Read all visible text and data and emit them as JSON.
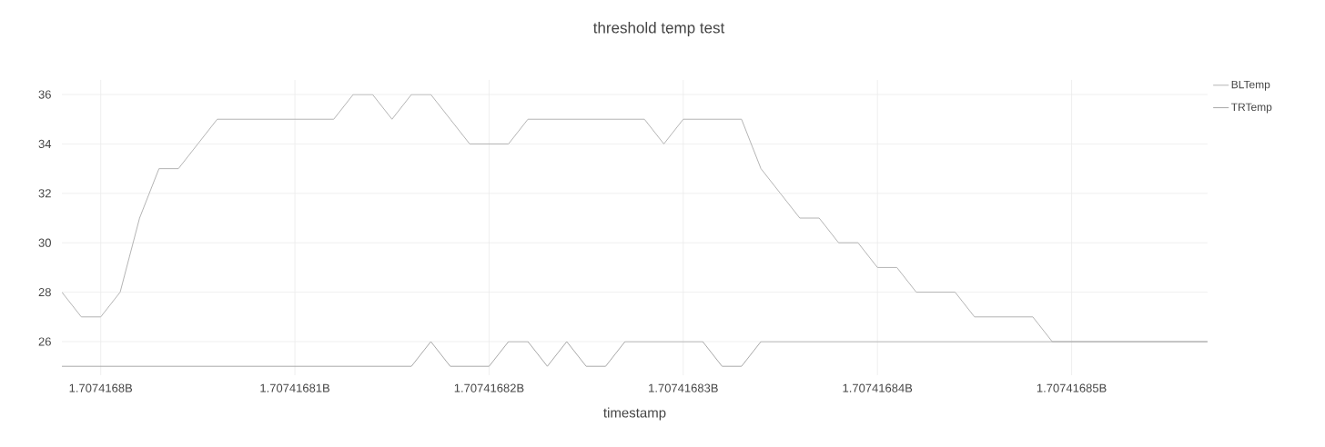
{
  "chart_data": {
    "type": "line",
    "title": "threshold temp test",
    "xlabel": "timestamp",
    "x": [
      1707416798,
      1707416799,
      1707416800,
      1707416801,
      1707416802,
      1707416803,
      1707416804,
      1707416805,
      1707416806,
      1707416807,
      1707416808,
      1707416809,
      1707416810,
      1707416811,
      1707416812,
      1707416813,
      1707416814,
      1707416815,
      1707416816,
      1707416817,
      1707416818,
      1707416819,
      1707416820,
      1707416821,
      1707416822,
      1707416823,
      1707416824,
      1707416825,
      1707416826,
      1707416827,
      1707416828,
      1707416829,
      1707416830,
      1707416831,
      1707416832,
      1707416833,
      1707416834,
      1707416835,
      1707416836,
      1707416837,
      1707416838,
      1707416839,
      1707416840,
      1707416841,
      1707416842,
      1707416843,
      1707416844,
      1707416845,
      1707416846,
      1707416847,
      1707416848,
      1707416849,
      1707416850,
      1707416851,
      1707416852,
      1707416853,
      1707416854,
      1707416855,
      1707416856,
      1707416857
    ],
    "series": [
      {
        "name": "BLTemp",
        "color": "#b4b4b4",
        "values": [
          28,
          27,
          27,
          28,
          31,
          33,
          33,
          34,
          35,
          35,
          35,
          35,
          35,
          35,
          35,
          36,
          36,
          35,
          36,
          36,
          35,
          34,
          34,
          34,
          35,
          35,
          35,
          35,
          35,
          35,
          35,
          34,
          35,
          35,
          35,
          35,
          33,
          32,
          31,
          31,
          30,
          30,
          29,
          29,
          28,
          28,
          28,
          27,
          27,
          27,
          27,
          26,
          26,
          26,
          26,
          26,
          26,
          26,
          26,
          26
        ]
      },
      {
        "name": "TRTemp",
        "color": "#a8a8a8",
        "values": [
          25,
          25,
          25,
          25,
          25,
          25,
          25,
          25,
          25,
          25,
          25,
          25,
          25,
          25,
          25,
          25,
          25,
          25,
          25,
          26,
          25,
          25,
          25,
          26,
          26,
          25,
          26,
          25,
          25,
          26,
          26,
          26,
          26,
          26,
          25,
          25,
          26,
          26,
          26,
          26,
          26,
          26,
          26,
          26,
          26,
          26,
          26,
          26,
          26,
          26,
          26,
          26,
          26,
          26,
          26,
          26,
          26,
          26,
          26,
          26
        ]
      }
    ],
    "xlim": [
      1707416798,
      1707416857
    ],
    "ylim": [
      24.64,
      36.59
    ],
    "xticks": [
      {
        "value": 1707416800,
        "label": "1.7074168B"
      },
      {
        "value": 1707416810,
        "label": "1.70741681B"
      },
      {
        "value": 1707416820,
        "label": "1.70741682B"
      },
      {
        "value": 1707416830,
        "label": "1.70741683B"
      },
      {
        "value": 1707416840,
        "label": "1.70741684B"
      },
      {
        "value": 1707416850,
        "label": "1.70741685B"
      }
    ],
    "yticks": [
      26,
      28,
      30,
      32,
      34,
      36
    ],
    "grid": true,
    "legend": "top right",
    "marker": "none",
    "line_style": "solid"
  }
}
